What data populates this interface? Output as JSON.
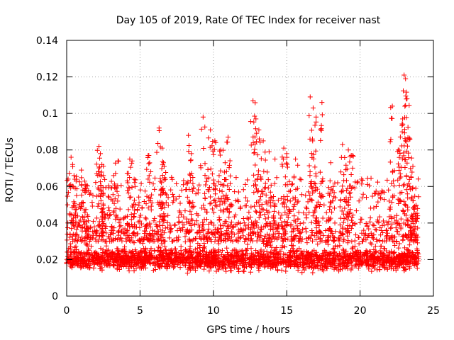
{
  "chart_data": {
    "type": "scatter",
    "title": "Day 105 of 2019, Rate Of TEC Index for receiver nast",
    "xlabel": "GPS time / hours",
    "ylabel": "ROTI / TECUs",
    "xlim": [
      0,
      25
    ],
    "ylim": [
      0,
      0.14
    ],
    "x_ticks": [
      "0",
      "5",
      "10",
      "15",
      "20",
      "25"
    ],
    "y_ticks": [
      "0",
      "0.02",
      "0.04",
      "0.06",
      "0.08",
      "0.1",
      "0.12",
      "0.14"
    ],
    "grid": true,
    "marker": "+",
    "color": "#ff0000",
    "series": [
      {
        "name": "ROTI",
        "baseline_level": 0.02,
        "baseline_spread": 0.008,
        "data_x_range": [
          0,
          24
        ],
        "points": [
          [
            0.3,
            0.076
          ],
          [
            0.5,
            0.066
          ],
          [
            1.0,
            0.069
          ],
          [
            1.3,
            0.061
          ],
          [
            2.2,
            0.082
          ],
          [
            2.3,
            0.078
          ],
          [
            2.4,
            0.072
          ],
          [
            2.5,
            0.066
          ],
          [
            3.2,
            0.066
          ],
          [
            3.5,
            0.074
          ],
          [
            4.3,
            0.075
          ],
          [
            4.6,
            0.064
          ],
          [
            5.6,
            0.077
          ],
          [
            6.3,
            0.092
          ],
          [
            6.5,
            0.081
          ],
          [
            6.6,
            0.073
          ],
          [
            8.3,
            0.088
          ],
          [
            8.5,
            0.078
          ],
          [
            9.3,
            0.098
          ],
          [
            9.8,
            0.091
          ],
          [
            10.1,
            0.085
          ],
          [
            10.5,
            0.08
          ],
          [
            10.8,
            0.073
          ],
          [
            11.0,
            0.087
          ],
          [
            12.7,
            0.107
          ],
          [
            12.9,
            0.097
          ],
          [
            13.1,
            0.091
          ],
          [
            13.4,
            0.085
          ],
          [
            13.8,
            0.079
          ],
          [
            14.2,
            0.075
          ],
          [
            14.8,
            0.081
          ],
          [
            15.0,
            0.078
          ],
          [
            15.6,
            0.075
          ],
          [
            16.6,
            0.109
          ],
          [
            16.8,
            0.103
          ],
          [
            17.0,
            0.098
          ],
          [
            17.4,
            0.106
          ],
          [
            18.0,
            0.073
          ],
          [
            18.8,
            0.083
          ],
          [
            19.2,
            0.08
          ],
          [
            19.4,
            0.077
          ],
          [
            22.2,
            0.104
          ],
          [
            22.6,
            0.08
          ],
          [
            22.9,
            0.097
          ],
          [
            23.0,
            0.121
          ],
          [
            23.1,
            0.119
          ],
          [
            23.2,
            0.108
          ],
          [
            23.4,
            0.086
          ],
          [
            23.6,
            0.071
          ],
          [
            23.8,
            0.059
          ]
        ]
      }
    ]
  }
}
